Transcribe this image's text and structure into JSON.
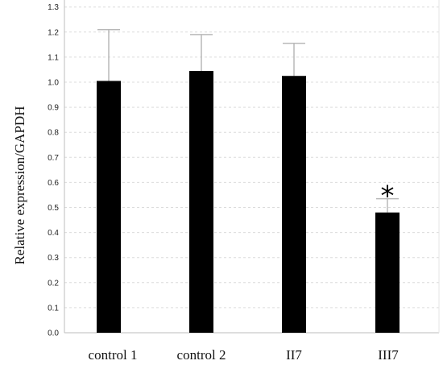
{
  "chart_data": {
    "type": "bar",
    "categories": [
      "control 1",
      "control 2",
      "II7",
      "III7"
    ],
    "values": [
      1.005,
      1.045,
      1.025,
      0.48
    ],
    "error_upper": [
      1.21,
      1.19,
      1.155,
      0.535
    ],
    "ylabel": "Relative expression/GAPDH",
    "ylim": [
      0,
      1.3
    ],
    "yticks": [
      "0.0",
      "0.1",
      "0.2",
      "0.3",
      "0.4",
      "0.5",
      "0.6",
      "0.7",
      "0.8",
      "0.9",
      "1.0",
      "1.1",
      "1.2",
      "1.3"
    ],
    "grid": true,
    "annotations": [
      {
        "category": "III7",
        "text": "*"
      }
    ],
    "colors": {
      "bar": "#000000",
      "error_bar": "#b8b8b8",
      "grid": "#dcdcdc",
      "axis": "#bdbdbd"
    }
  }
}
